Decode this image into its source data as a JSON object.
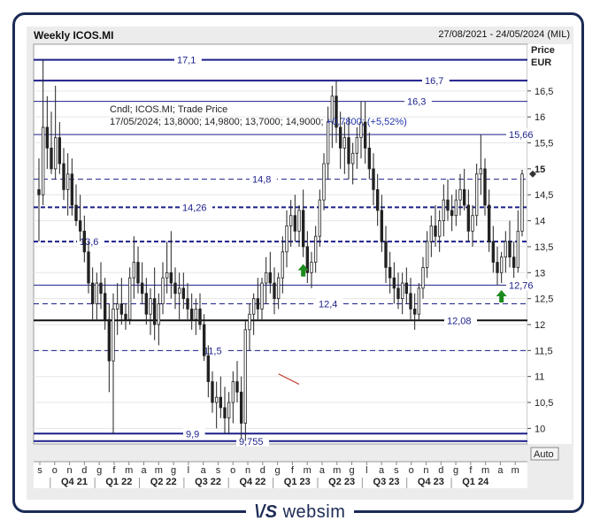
{
  "header": {
    "title": "Weekly ICOS.MI",
    "date_range": "27/08/2021 - 24/05/2024 (MIL)"
  },
  "brand": {
    "logo_text": "\\/S",
    "name": "websim"
  },
  "chart_data": {
    "type": "candlestick",
    "title": "Weekly ICOS.MI",
    "ylabel": "Price",
    "unit": "EUR",
    "ylim": [
      9.7,
      17.4
    ],
    "y_ticks": [
      "10",
      "10,5",
      "11",
      "11,5",
      "12",
      "12,5",
      "13",
      "13,5",
      "14",
      "14,5",
      "15",
      "15,5",
      "16",
      "16,5"
    ],
    "current_price_label": "15",
    "auto_button": "Auto",
    "x_month_labels": [
      "s",
      "o",
      "n",
      "d",
      "g",
      "f",
      "m",
      "a",
      "m",
      "g",
      "l",
      "a",
      "s",
      "o",
      "n",
      "d",
      "g",
      "f",
      "m",
      "a",
      "m",
      "g",
      "l",
      "a",
      "s",
      "o",
      "n",
      "d",
      "g",
      "f",
      "m",
      "a",
      "m"
    ],
    "x_quarter_labels": [
      "Q4 21",
      "Q1 22",
      "Q2 22",
      "Q3 22",
      "Q4 22",
      "Q1 23",
      "Q2 23",
      "Q3 23",
      "Q4 23",
      "Q1 24"
    ],
    "info_line1": "Cndl; ICOS.MI; Trade Price",
    "info_line2_prefix": "17/05/2024; 13,8000; 14,9800; 13,7000; 14,9000;",
    "info_change": "+0,7800; (+5,52%)",
    "levels": [
      {
        "value": 17.1,
        "label": "17,1",
        "style": "solid",
        "weight": "thick"
      },
      {
        "value": 16.7,
        "label": "16,7",
        "style": "solid",
        "weight": "thick"
      },
      {
        "value": 16.3,
        "label": "16,3",
        "style": "solid",
        "weight": "thin"
      },
      {
        "value": 15.66,
        "label": "15,66",
        "style": "solid",
        "weight": "thin"
      },
      {
        "value": 14.8,
        "label": "14,8",
        "style": "dashed",
        "weight": "thin"
      },
      {
        "value": 14.26,
        "label": "14,26",
        "style": "dashed",
        "weight": "thick"
      },
      {
        "value": 13.6,
        "label": "13,6",
        "style": "dashed",
        "weight": "thick"
      },
      {
        "value": 12.76,
        "label": "12,76",
        "style": "solid",
        "weight": "thin"
      },
      {
        "value": 12.4,
        "label": "12,4",
        "style": "dashed",
        "weight": "thin"
      },
      {
        "value": 12.08,
        "label": "12,08",
        "style": "solid",
        "weight": "black"
      },
      {
        "value": 11.5,
        "label": "11,5",
        "style": "dashed",
        "weight": "thin"
      },
      {
        "value": 9.9,
        "label": "9,9",
        "style": "solid",
        "weight": "thick"
      },
      {
        "value": 9.755,
        "label": "9,755",
        "style": "solid",
        "weight": "thick"
      }
    ],
    "signals": [
      {
        "week": 64,
        "direction": "up"
      },
      {
        "week": 112,
        "direction": "up"
      }
    ],
    "candles": [
      [
        14.6,
        15.2,
        13.6,
        14.5
      ],
      [
        14.5,
        17.1,
        14.3,
        15.8
      ],
      [
        15.8,
        16.4,
        15.0,
        15.4
      ],
      [
        15.4,
        16.1,
        14.9,
        15.0
      ],
      [
        15.0,
        16.6,
        14.8,
        15.6
      ],
      [
        15.6,
        15.9,
        14.9,
        15.1
      ],
      [
        15.1,
        15.4,
        14.4,
        14.6
      ],
      [
        14.6,
        15.3,
        14.1,
        14.9
      ],
      [
        14.9,
        15.2,
        14.1,
        14.3
      ],
      [
        14.3,
        14.7,
        13.9,
        14.0
      ],
      [
        14.0,
        14.5,
        13.6,
        13.8
      ],
      [
        13.8,
        14.1,
        13.2,
        13.4
      ],
      [
        13.4,
        13.6,
        12.6,
        12.8
      ],
      [
        12.8,
        13.1,
        12.1,
        12.4
      ],
      [
        12.4,
        13.0,
        12.1,
        12.8
      ],
      [
        12.8,
        13.2,
        12.3,
        12.6
      ],
      [
        12.6,
        12.9,
        11.9,
        12.1
      ],
      [
        12.1,
        12.4,
        10.7,
        11.3
      ],
      [
        11.3,
        12.6,
        9.9,
        12.3
      ],
      [
        12.3,
        12.8,
        11.8,
        12.4
      ],
      [
        12.4,
        12.9,
        12.0,
        12.2
      ],
      [
        12.2,
        12.4,
        11.9,
        12.1
      ],
      [
        12.1,
        13.1,
        12.0,
        12.9
      ],
      [
        12.9,
        13.7,
        12.5,
        13.2
      ],
      [
        13.2,
        13.5,
        12.6,
        12.8
      ],
      [
        12.8,
        13.2,
        12.4,
        12.6
      ],
      [
        12.6,
        12.9,
        12.0,
        12.2
      ],
      [
        12.2,
        12.7,
        11.8,
        12.5
      ],
      [
        12.5,
        13.1,
        11.7,
        12.0
      ],
      [
        12.0,
        12.6,
        11.6,
        12.4
      ],
      [
        12.4,
        13.2,
        12.2,
        12.9
      ],
      [
        12.9,
        13.6,
        12.6,
        13.0
      ],
      [
        13.0,
        13.8,
        12.5,
        12.8
      ],
      [
        12.8,
        13.1,
        12.3,
        12.6
      ],
      [
        12.6,
        13.0,
        12.1,
        12.7
      ],
      [
        12.7,
        13.0,
        12.3,
        12.5
      ],
      [
        12.5,
        12.8,
        12.1,
        12.3
      ],
      [
        12.3,
        12.6,
        11.9,
        12.1
      ],
      [
        12.1,
        12.5,
        11.8,
        12.3
      ],
      [
        12.3,
        12.6,
        11.9,
        12.0
      ],
      [
        12.0,
        12.2,
        11.3,
        11.4
      ],
      [
        11.4,
        11.6,
        10.6,
        10.9
      ],
      [
        10.9,
        11.1,
        10.3,
        10.5
      ],
      [
        10.5,
        10.9,
        10.0,
        10.6
      ],
      [
        10.6,
        11.0,
        10.2,
        10.4
      ],
      [
        10.4,
        10.8,
        9.9,
        10.2
      ],
      [
        10.2,
        10.7,
        9.9,
        10.5
      ],
      [
        10.5,
        11.1,
        10.1,
        10.9
      ],
      [
        10.9,
        11.3,
        10.5,
        10.7
      ],
      [
        10.7,
        11.0,
        9.8,
        10.1
      ],
      [
        10.1,
        12.1,
        9.76,
        11.9
      ],
      [
        11.9,
        12.4,
        11.5,
        12.2
      ],
      [
        12.2,
        12.6,
        11.8,
        12.5
      ],
      [
        12.5,
        12.9,
        12.1,
        12.3
      ],
      [
        12.3,
        12.9,
        12.1,
        12.8
      ],
      [
        12.8,
        13.3,
        12.4,
        13.0
      ],
      [
        13.0,
        13.4,
        12.6,
        12.8
      ],
      [
        12.8,
        13.1,
        12.2,
        12.5
      ],
      [
        12.5,
        13.0,
        12.3,
        12.9
      ],
      [
        12.9,
        13.7,
        12.6,
        13.4
      ],
      [
        13.4,
        14.2,
        13.1,
        13.9
      ],
      [
        13.9,
        14.4,
        13.5,
        14.1
      ],
      [
        14.1,
        14.5,
        13.6,
        13.8
      ],
      [
        13.8,
        14.3,
        13.5,
        14.2
      ],
      [
        14.2,
        14.6,
        13.3,
        13.5
      ],
      [
        13.5,
        13.8,
        12.8,
        13.0
      ],
      [
        13.0,
        13.4,
        12.7,
        13.2
      ],
      [
        13.2,
        13.9,
        13.0,
        13.7
      ],
      [
        13.7,
        14.6,
        13.5,
        14.4
      ],
      [
        14.4,
        15.3,
        14.2,
        15.1
      ],
      [
        15.1,
        16.2,
        14.8,
        15.9
      ],
      [
        15.9,
        16.6,
        15.4,
        16.4
      ],
      [
        16.4,
        16.7,
        15.5,
        15.8
      ],
      [
        15.8,
        16.1,
        15.0,
        15.4
      ],
      [
        15.4,
        15.9,
        14.9,
        15.6
      ],
      [
        15.6,
        16.0,
        14.8,
        15.1
      ],
      [
        15.1,
        15.5,
        14.7,
        15.3
      ],
      [
        15.3,
        15.8,
        15.0,
        15.6
      ],
      [
        15.6,
        16.3,
        15.2,
        15.9
      ],
      [
        15.9,
        16.3,
        15.1,
        15.4
      ],
      [
        15.4,
        15.7,
        14.8,
        15.0
      ],
      [
        15.0,
        15.3,
        14.3,
        14.6
      ],
      [
        14.6,
        14.9,
        13.9,
        14.2
      ],
      [
        14.2,
        14.5,
        13.4,
        13.6
      ],
      [
        13.6,
        13.9,
        12.8,
        13.1
      ],
      [
        13.1,
        13.4,
        12.6,
        12.9
      ],
      [
        12.9,
        13.2,
        12.4,
        12.7
      ],
      [
        12.7,
        13.0,
        12.3,
        12.5
      ],
      [
        12.5,
        13.0,
        12.2,
        12.8
      ],
      [
        12.8,
        13.1,
        12.4,
        12.6
      ],
      [
        12.6,
        12.9,
        12.1,
        12.3
      ],
      [
        12.3,
        12.6,
        11.9,
        12.2
      ],
      [
        12.2,
        12.8,
        12.08,
        12.7
      ],
      [
        12.7,
        13.3,
        12.5,
        13.1
      ],
      [
        13.1,
        13.8,
        12.9,
        13.6
      ],
      [
        13.6,
        14.1,
        13.3,
        13.9
      ],
      [
        13.9,
        14.3,
        13.5,
        13.7
      ],
      [
        13.7,
        14.2,
        13.4,
        14.0
      ],
      [
        14.0,
        14.7,
        13.7,
        14.4
      ],
      [
        14.4,
        14.8,
        14.0,
        14.2
      ],
      [
        14.2,
        14.5,
        13.8,
        14.1
      ],
      [
        14.1,
        14.6,
        13.9,
        14.4
      ],
      [
        14.4,
        14.9,
        14.1,
        14.6
      ],
      [
        14.6,
        15.0,
        14.2,
        14.3
      ],
      [
        14.3,
        14.6,
        13.6,
        13.8
      ],
      [
        13.8,
        14.3,
        13.5,
        14.1
      ],
      [
        14.1,
        15.1,
        13.9,
        14.9
      ],
      [
        14.9,
        15.66,
        14.5,
        15.0
      ],
      [
        15.0,
        15.2,
        14.1,
        14.3
      ],
      [
        14.3,
        14.6,
        13.4,
        13.6
      ],
      [
        13.6,
        13.9,
        13.0,
        13.2
      ],
      [
        13.2,
        13.5,
        12.76,
        13.0
      ],
      [
        13.0,
        13.4,
        12.8,
        13.3
      ],
      [
        13.3,
        13.8,
        13.0,
        13.6
      ],
      [
        13.6,
        14.0,
        13.1,
        13.3
      ],
      [
        13.3,
        13.6,
        12.9,
        13.1
      ],
      [
        13.1,
        14.2,
        13.0,
        13.8
      ],
      [
        13.8,
        14.98,
        13.7,
        14.9
      ]
    ]
  }
}
